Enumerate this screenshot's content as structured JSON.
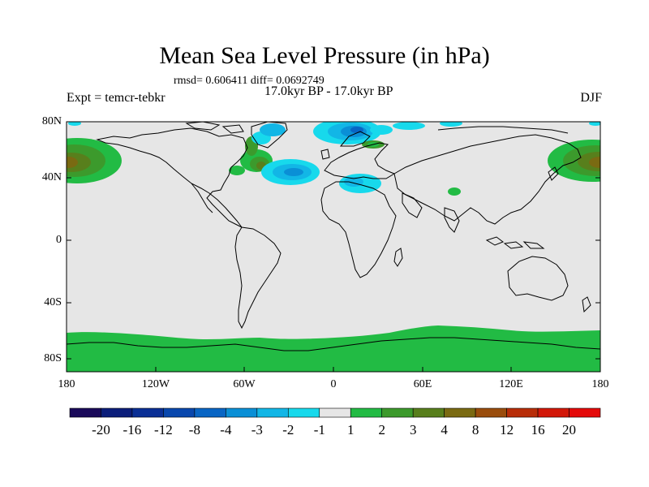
{
  "title": "Mean Sea Level Pressure (in hPa)",
  "stats": "rmsd= 0.606411  diff= 0.0692749",
  "period": "17.0kyr BP - 17.0kyr BP",
  "expt": "Expt = temcr-tebkr",
  "season": "DJF",
  "map": {
    "lat_labels": [
      "80N",
      "40N",
      "0",
      "40S",
      "80S"
    ],
    "lon_labels": [
      "180",
      "120W",
      "60W",
      "0",
      "60E",
      "120E",
      "180"
    ],
    "background_color": "#e6e6e6"
  },
  "colorbar": {
    "labels": [
      "-20",
      "-16",
      "-12",
      "-8",
      "-4",
      "-3",
      "-2",
      "-1",
      "1",
      "2",
      "3",
      "4",
      "8",
      "12",
      "16",
      "20"
    ],
    "colors": [
      "#1a0a5a",
      "#0b1d7a",
      "#0a2f95",
      "#0847ad",
      "#0865c4",
      "#0a8fd6",
      "#12b6e6",
      "#17d9ec",
      "#e6e6e6",
      "#22bb44",
      "#3c9a2c",
      "#587f1c",
      "#7a6a12",
      "#9a4d0c",
      "#b82d08",
      "#d21708",
      "#e40a0a"
    ]
  }
}
